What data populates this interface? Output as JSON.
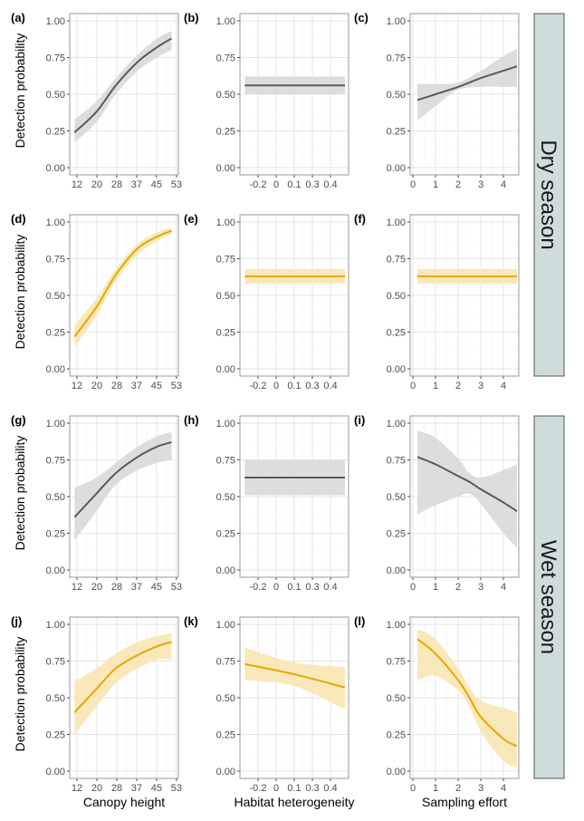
{
  "colors": {
    "gray_line": "#5a5a5a",
    "gray_band": "#d9d9d9",
    "orange_line": "#e6a800",
    "orange_band": "#f8e5b3",
    "strip_fill": "#cfdcdc"
  },
  "y_axis_title": "Detection probability",
  "strips": [
    "Dry season",
    "Wet season"
  ],
  "chart_data": {
    "type": "line",
    "ylim": [
      0,
      1
    ],
    "y_ticks": [
      "0.00",
      "0.25",
      "0.50",
      "0.75",
      "1.00"
    ],
    "x_axes": [
      {
        "xlabel": "Canopy height",
        "xlim": [
          9,
          53.8
        ],
        "tick_values": [
          12,
          20.2,
          28.4,
          36.6,
          44.8,
          53
        ],
        "tick_labels": [
          "12",
          "20",
          "28",
          "37",
          "45",
          "53"
        ]
      },
      {
        "xlabel": "Habitat heterogeneity",
        "xlim": [
          -0.35,
          0.55
        ],
        "tick_values": [
          -0.2,
          -0.05,
          0.1,
          0.25,
          0.4
        ],
        "tick_labels": [
          "-0.2",
          "0",
          "0.1",
          "0.3",
          "0.4"
        ]
      },
      {
        "xlabel": "Sampling effort",
        "xlim": [
          -0.12,
          4.68
        ],
        "tick_values": [
          0,
          1,
          2,
          3,
          4
        ],
        "tick_labels": [
          "0",
          "1",
          "2",
          "3",
          "4"
        ]
      }
    ],
    "panels": [
      {
        "label": "(a)",
        "season": "Dry season",
        "color": "gray",
        "points": [
          [
            11,
            0.24,
            0.17,
            0.33
          ],
          [
            20,
            0.38,
            0.31,
            0.45
          ],
          [
            28,
            0.56,
            0.5,
            0.61
          ],
          [
            37,
            0.72,
            0.66,
            0.77
          ],
          [
            45,
            0.82,
            0.75,
            0.88
          ],
          [
            51,
            0.88,
            0.8,
            0.93
          ]
        ]
      },
      {
        "label": "(b)",
        "season": "Dry season",
        "color": "gray",
        "points": [
          [
            -0.31,
            0.56,
            0.5,
            0.62
          ],
          [
            0.52,
            0.56,
            0.5,
            0.62
          ]
        ]
      },
      {
        "label": "(c)",
        "season": "Dry season",
        "color": "gray",
        "points": [
          [
            0.2,
            0.46,
            0.32,
            0.57
          ],
          [
            1,
            0.5,
            0.42,
            0.57
          ],
          [
            2,
            0.55,
            0.53,
            0.58
          ],
          [
            3,
            0.61,
            0.55,
            0.66
          ],
          [
            4,
            0.66,
            0.55,
            0.76
          ],
          [
            4.6,
            0.69,
            0.55,
            0.81
          ]
        ]
      },
      {
        "label": "(d)",
        "season": "Dry season",
        "color": "orange",
        "points": [
          [
            11,
            0.22,
            0.15,
            0.3
          ],
          [
            20,
            0.42,
            0.36,
            0.48
          ],
          [
            28,
            0.64,
            0.6,
            0.68
          ],
          [
            37,
            0.82,
            0.78,
            0.85
          ],
          [
            45,
            0.9,
            0.87,
            0.93
          ],
          [
            51,
            0.94,
            0.92,
            0.96
          ]
        ]
      },
      {
        "label": "(e)",
        "season": "Dry season",
        "color": "orange",
        "points": [
          [
            -0.31,
            0.63,
            0.58,
            0.68
          ],
          [
            0.52,
            0.63,
            0.58,
            0.68
          ]
        ]
      },
      {
        "label": "(f)",
        "season": "Dry season",
        "color": "orange",
        "points": [
          [
            0.2,
            0.63,
            0.58,
            0.68
          ],
          [
            4.6,
            0.63,
            0.58,
            0.68
          ]
        ]
      },
      {
        "label": "(g)",
        "season": "Wet season",
        "color": "gray",
        "points": [
          [
            11,
            0.36,
            0.2,
            0.56
          ],
          [
            20,
            0.52,
            0.4,
            0.63
          ],
          [
            28,
            0.66,
            0.58,
            0.73
          ],
          [
            37,
            0.77,
            0.68,
            0.84
          ],
          [
            45,
            0.84,
            0.73,
            0.91
          ],
          [
            51,
            0.87,
            0.75,
            0.94
          ]
        ]
      },
      {
        "label": "(h)",
        "season": "Wet season",
        "color": "gray",
        "points": [
          [
            -0.31,
            0.63,
            0.51,
            0.75
          ],
          [
            0.52,
            0.63,
            0.51,
            0.75
          ]
        ]
      },
      {
        "label": "(i)",
        "season": "Wet season",
        "color": "gray",
        "points": [
          [
            0.2,
            0.77,
            0.38,
            0.95
          ],
          [
            1,
            0.72,
            0.44,
            0.9
          ],
          [
            2,
            0.64,
            0.5,
            0.76
          ],
          [
            2.5,
            0.6,
            0.52,
            0.66
          ],
          [
            3,
            0.55,
            0.45,
            0.63
          ],
          [
            4,
            0.46,
            0.25,
            0.68
          ],
          [
            4.6,
            0.4,
            0.15,
            0.72
          ]
        ]
      },
      {
        "label": "(j)",
        "season": "Wet season",
        "color": "orange",
        "points": [
          [
            11,
            0.4,
            0.25,
            0.61
          ],
          [
            20,
            0.56,
            0.44,
            0.7
          ],
          [
            28,
            0.7,
            0.6,
            0.8
          ],
          [
            37,
            0.79,
            0.7,
            0.88
          ],
          [
            45,
            0.85,
            0.76,
            0.92
          ],
          [
            51,
            0.88,
            0.76,
            0.94
          ]
        ]
      },
      {
        "label": "(k)",
        "season": "Wet season",
        "color": "orange",
        "points": [
          [
            -0.31,
            0.73,
            0.62,
            0.84
          ],
          [
            0.1,
            0.66,
            0.58,
            0.74
          ],
          [
            0.52,
            0.57,
            0.42,
            0.71
          ]
        ]
      },
      {
        "label": "(l)",
        "season": "Wet season",
        "color": "orange",
        "points": [
          [
            0.2,
            0.9,
            0.62,
            0.97
          ],
          [
            1,
            0.8,
            0.65,
            0.9
          ],
          [
            2,
            0.62,
            0.55,
            0.7
          ],
          [
            2.5,
            0.5,
            0.44,
            0.57
          ],
          [
            3,
            0.37,
            0.27,
            0.48
          ],
          [
            4,
            0.22,
            0.07,
            0.43
          ],
          [
            4.6,
            0.17,
            0.03,
            0.4
          ]
        ]
      }
    ]
  }
}
